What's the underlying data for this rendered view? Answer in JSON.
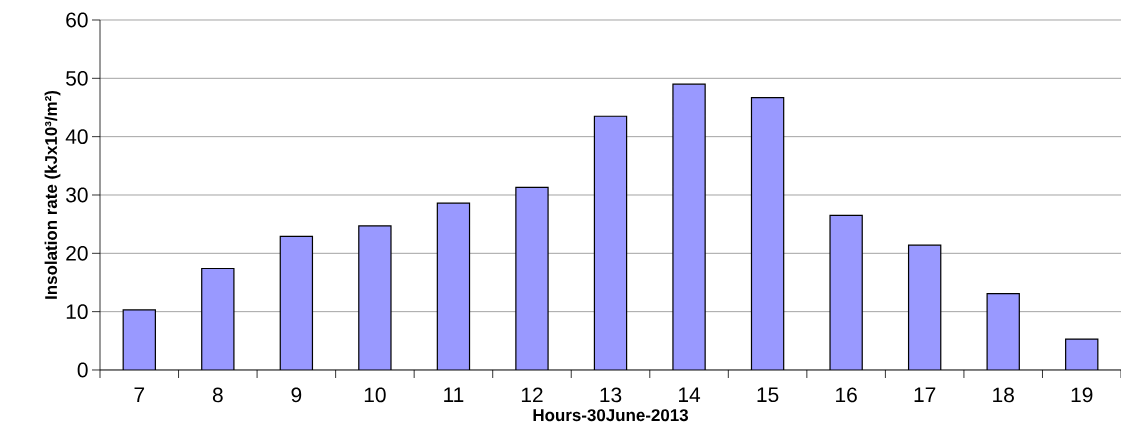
{
  "chart_data": {
    "type": "bar",
    "xlabel": "Hours-30June-2013",
    "ylabel": "Insolation rate (kJx10³/m²)",
    "categories": [
      "7",
      "8",
      "9",
      "10",
      "11",
      "12",
      "13",
      "14",
      "15",
      "16",
      "17",
      "18",
      "19"
    ],
    "values": [
      10.3,
      17.4,
      22.9,
      24.7,
      28.6,
      31.3,
      43.5,
      49.0,
      46.7,
      26.5,
      21.4,
      13.1,
      5.3
    ],
    "color": "#9999ff",
    "ylim": [
      0,
      60
    ],
    "yticks": [
      0,
      10,
      20,
      30,
      40,
      50,
      60
    ],
    "grid": "y"
  }
}
